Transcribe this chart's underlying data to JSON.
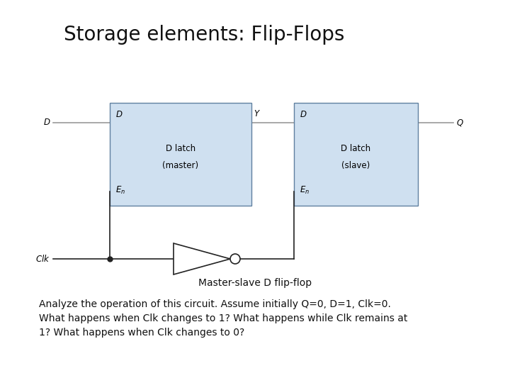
{
  "title": "Storage elements: Flip-Flops",
  "subtitle": "Master-slave D flip-flop",
  "body_text": "Analyze the operation of this circuit. Assume initially Q=0, D=1, Clk=0.\nWhat happens when Clk changes to 1? What happens while Clk remains at\n1? What happens when Clk changes to 0?",
  "bg_color": "#ffffff",
  "box_fill": "#cfe0f0",
  "box_edge": "#6080a0",
  "wire_color": "#999999",
  "dark_line": "#222222",
  "title_fontsize": 20,
  "label_fontsize": 8.5,
  "body_fontsize": 10,
  "subtitle_fontsize": 10
}
